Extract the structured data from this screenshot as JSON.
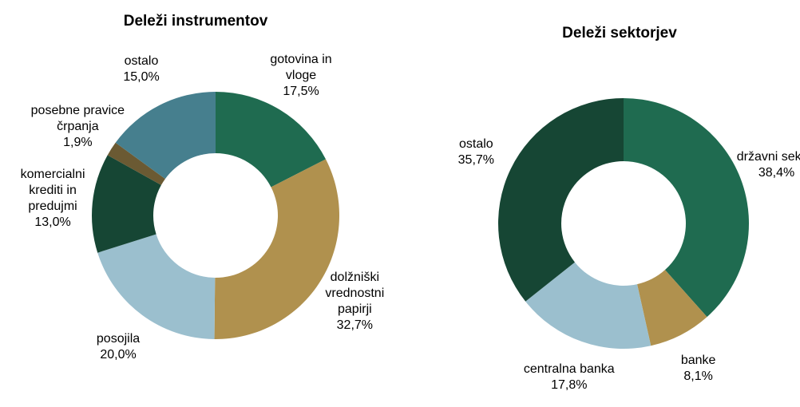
{
  "chart_data": [
    {
      "type": "pie",
      "title": "Deleži instrumentov",
      "categories": [
        "gotovina in vloge",
        "dolžniški vrednostni papirji",
        "posojila",
        "komercialni krediti in predujmi",
        "posebne pravice črpanja",
        "ostalo"
      ],
      "values": [
        17.5,
        32.7,
        20.0,
        13.0,
        1.9,
        15.0
      ],
      "value_labels": [
        "17,5%",
        "32,7%",
        "20,0%",
        "13,0%",
        "1,9%",
        "15,0%"
      ],
      "colors": [
        "#1f6b50",
        "#b0914e",
        "#9bbfce",
        "#164634",
        "#6b5a33",
        "#467f8e"
      ]
    },
    {
      "type": "pie",
      "title": "Deleži sektorjev",
      "categories": [
        "državni sektor",
        "banke",
        "centralna banka",
        "ostalo"
      ],
      "values": [
        38.4,
        8.1,
        17.8,
        35.7
      ],
      "value_labels": [
        "38,4%",
        "8,1%",
        "17,8%",
        "35,7%"
      ],
      "colors": [
        "#1f6b50",
        "#b0914e",
        "#9bbfce",
        "#164634"
      ]
    }
  ]
}
